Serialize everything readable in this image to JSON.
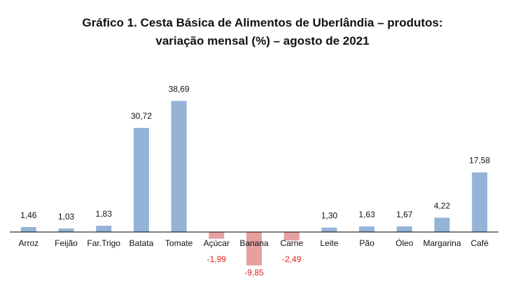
{
  "title_line1": "Gráfico 1. Cesta Básica de Alimentos de Uberlândia – produtos:",
  "title_line2": "variação mensal (%) – agosto de 2021",
  "chart_data": {
    "type": "bar",
    "title": "Gráfico 1. Cesta Básica de Alimentos de Uberlândia – produtos: variação mensal (%) – agosto de 2021",
    "xlabel": "",
    "ylabel": "",
    "categories": [
      "Arroz",
      "Feijão",
      "Far.Trigo",
      "Batata",
      "Tomate",
      "Açúcar",
      "Banana",
      "Carne",
      "Leite",
      "Pão",
      "Óleo",
      "Margarina",
      "Café"
    ],
    "values": [
      1.46,
      1.03,
      1.83,
      30.72,
      38.69,
      -1.99,
      -9.85,
      -2.49,
      1.3,
      1.63,
      1.67,
      4.22,
      17.58
    ],
    "data_labels": [
      "1,46",
      "1,03",
      "1,83",
      "30,72",
      "38,69",
      "-1,99",
      "-9,85",
      "-2,49",
      "1,30",
      "1,63",
      "1,67",
      "4,22",
      "17,58"
    ],
    "ylim": [
      -10,
      40
    ],
    "grid": false,
    "legend": "none",
    "colors": {
      "positive": "#95b3d7",
      "negative": "#e6a0a0",
      "negative_label": "#e02020",
      "positive_label": "#111111",
      "axis": "#000000"
    }
  }
}
